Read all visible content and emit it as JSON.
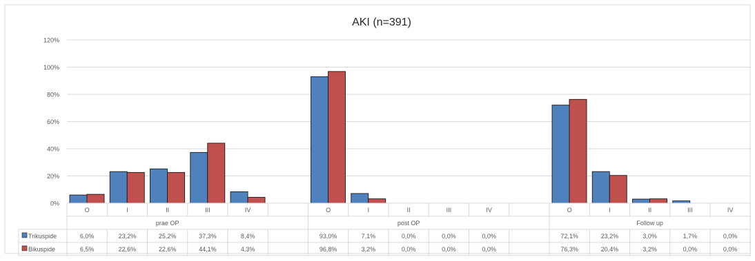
{
  "chart_data": {
    "type": "bar",
    "title": "AKI (n=391)",
    "y_ticks": [
      "0%",
      "20%",
      "40%",
      "60%",
      "80%",
      "100%",
      "120%"
    ],
    "ylim": [
      0,
      120
    ],
    "grid": true,
    "legend_placement": "data-table-left",
    "groups": [
      {
        "label": "prae OP",
        "categories": [
          "O",
          "I",
          "II",
          "III",
          "IV"
        ]
      },
      {
        "label": "post OP",
        "categories": [
          "O",
          "I",
          "II",
          "III",
          "IV"
        ]
      },
      {
        "label": "Follow up",
        "categories": [
          "O",
          "I",
          "II",
          "III",
          "IV"
        ]
      }
    ],
    "series": [
      {
        "name": "Trikuspide",
        "color": "#4f81bd",
        "values": [
          6.0,
          23.2,
          25.2,
          37.3,
          8.4,
          93.0,
          7.1,
          0.0,
          0.0,
          0.0,
          72.1,
          23.2,
          3.0,
          1.7,
          0.0
        ],
        "labels": [
          "6,0%",
          "23,2%",
          "25,2%",
          "37,3%",
          "8,4%",
          "93,0%",
          "7,1%",
          "0,0%",
          "0,0%",
          "0,0%",
          "72,1%",
          "23,2%",
          "3,0%",
          "1,7%",
          "0,0%"
        ]
      },
      {
        "name": "Bikuspide",
        "color": "#c0504d",
        "values": [
          6.5,
          22.6,
          22.6,
          44.1,
          4.3,
          96.8,
          3.2,
          0.0,
          0.0,
          0.0,
          76.3,
          20.4,
          3.2,
          0.0,
          0.0
        ],
        "labels": [
          "6,5%",
          "22,6%",
          "22,6%",
          "44,1%",
          "4,3%",
          "96,8%",
          "3,2%",
          "0,0%",
          "0,0%",
          "0,0%",
          "76,3%",
          "20,4%",
          "3,2%",
          "0,0%",
          "0,0%"
        ]
      }
    ]
  }
}
